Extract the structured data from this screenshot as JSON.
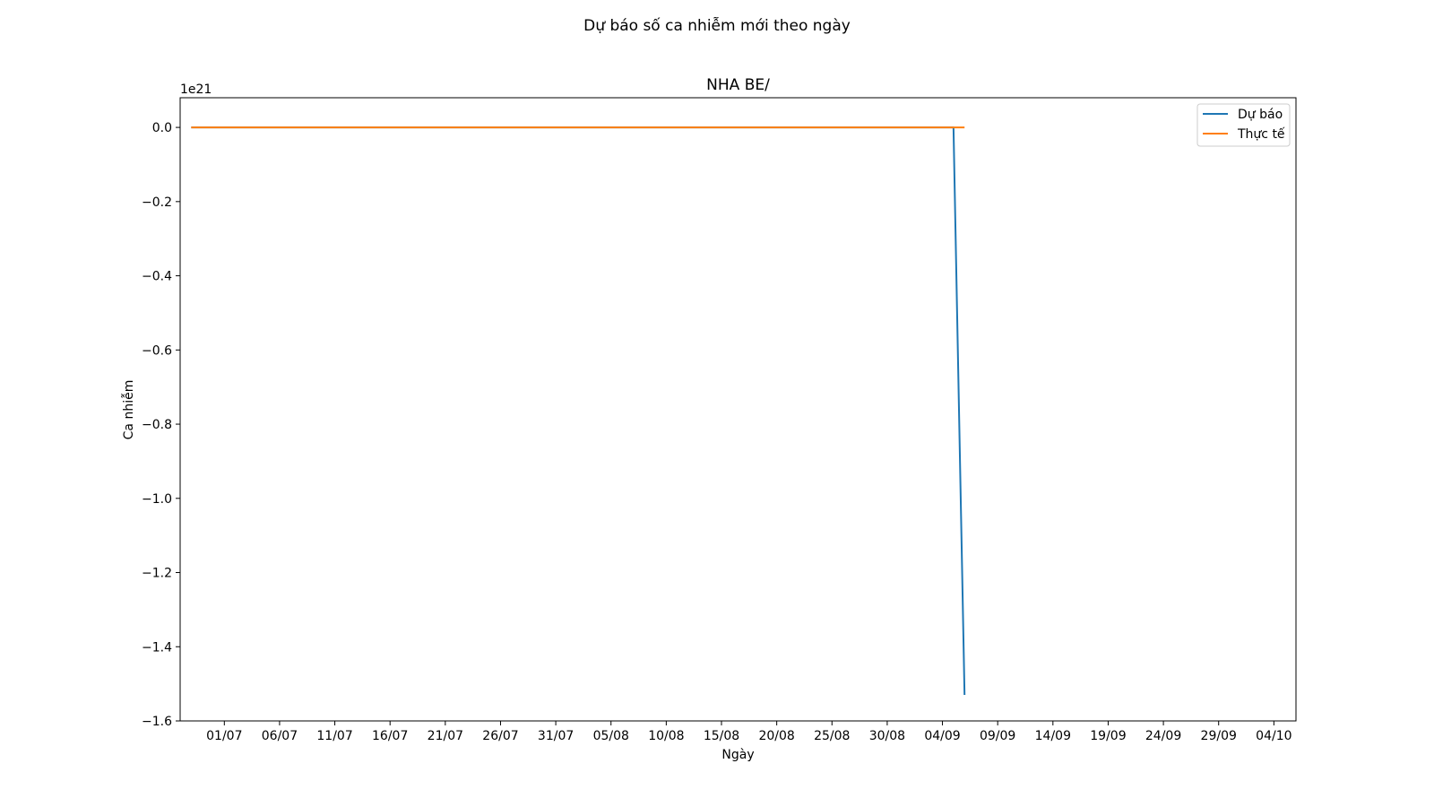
{
  "figure": {
    "suptitle": "Dự báo số ca nhiễm mới theo ngày",
    "background": "#ffffff"
  },
  "chart_data": {
    "type": "line",
    "title": "NHA BE/",
    "xlabel": "Ngày",
    "ylabel": "Ca nhiễm",
    "y_offset_label": "1e21",
    "y_scale_factor": 1e+21,
    "xlim": [
      "2021-06-27",
      "2021-10-06"
    ],
    "ylim": [
      -1.6e+21,
      8e+19
    ],
    "x_ticks": [
      {
        "date": "2021-07-01",
        "label": "01/07"
      },
      {
        "date": "2021-07-06",
        "label": "06/07"
      },
      {
        "date": "2021-07-11",
        "label": "11/07"
      },
      {
        "date": "2021-07-16",
        "label": "16/07"
      },
      {
        "date": "2021-07-21",
        "label": "21/07"
      },
      {
        "date": "2021-07-26",
        "label": "26/07"
      },
      {
        "date": "2021-07-31",
        "label": "31/07"
      },
      {
        "date": "2021-08-05",
        "label": "05/08"
      },
      {
        "date": "2021-08-10",
        "label": "10/08"
      },
      {
        "date": "2021-08-15",
        "label": "15/08"
      },
      {
        "date": "2021-08-20",
        "label": "20/08"
      },
      {
        "date": "2021-08-25",
        "label": "25/08"
      },
      {
        "date": "2021-08-30",
        "label": "30/08"
      },
      {
        "date": "2021-09-04",
        "label": "04/09"
      },
      {
        "date": "2021-09-09",
        "label": "09/09"
      },
      {
        "date": "2021-09-14",
        "label": "14/09"
      },
      {
        "date": "2021-09-19",
        "label": "19/09"
      },
      {
        "date": "2021-09-24",
        "label": "24/09"
      },
      {
        "date": "2021-09-29",
        "label": "29/09"
      },
      {
        "date": "2021-10-04",
        "label": "04/10"
      }
    ],
    "y_ticks": [
      {
        "value": 0.0,
        "label": "0.0"
      },
      {
        "value": -2e+20,
        "label": "−0.2"
      },
      {
        "value": -4e+20,
        "label": "−0.4"
      },
      {
        "value": -6e+20,
        "label": "−0.6"
      },
      {
        "value": -8e+20,
        "label": "−0.8"
      },
      {
        "value": -1e+21,
        "label": "−1.0"
      },
      {
        "value": -1.2e+21,
        "label": "−1.2"
      },
      {
        "value": -1.4e+21,
        "label": "−1.4"
      },
      {
        "value": -1.6e+21,
        "label": "−1.6"
      }
    ],
    "series": [
      {
        "name": "Dự báo",
        "color": "#1f77b4",
        "points": [
          {
            "x": "2021-06-28",
            "y": 0
          },
          {
            "x": "2021-09-05",
            "y": 0
          },
          {
            "x": "2021-09-06",
            "y": -1.53e+21
          }
        ]
      },
      {
        "name": "Thực tế",
        "color": "#ff7f0e",
        "points": [
          {
            "x": "2021-06-28",
            "y": 0
          },
          {
            "x": "2021-09-06",
            "y": 0
          }
        ]
      }
    ],
    "legend": {
      "placement": "top-right"
    },
    "grid": false
  }
}
